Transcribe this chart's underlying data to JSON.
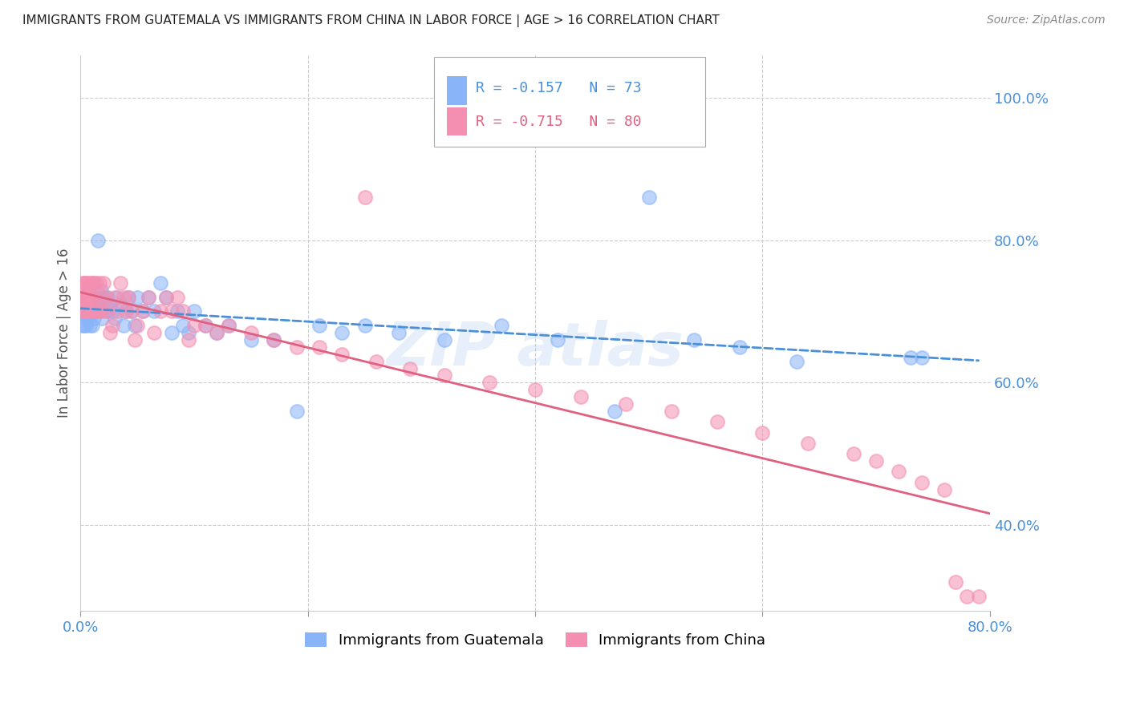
{
  "title": "IMMIGRANTS FROM GUATEMALA VS IMMIGRANTS FROM CHINA IN LABOR FORCE | AGE > 16 CORRELATION CHART",
  "source": "Source: ZipAtlas.com",
  "ylabel": "In Labor Force | Age > 16",
  "xlim": [
    0.0,
    0.8
  ],
  "ylim": [
    0.28,
    1.06
  ],
  "yticks_right": [
    0.4,
    0.6,
    0.8,
    1.0
  ],
  "ytick_labels_right": [
    "40.0%",
    "60.0%",
    "80.0%",
    "100.0%"
  ],
  "xtick_positions": [
    0.0,
    0.2,
    0.4,
    0.6,
    0.8
  ],
  "xticklabels": [
    "0.0%",
    "",
    "",
    "",
    "80.0%"
  ],
  "grid_color": "#cccccc",
  "background_color": "#ffffff",
  "guatemala_color": "#8ab4f8",
  "china_color": "#f48fb1",
  "guatemala_line_color": "#4a90d9",
  "china_line_color": "#e06080",
  "legend_r_guatemala": "R = -0.157",
  "legend_n_guatemala": "N = 73",
  "legend_r_china": "R = -0.715",
  "legend_n_china": "N = 80",
  "guatemala_R": -0.157,
  "guatemala_N": 73,
  "china_R": -0.715,
  "china_N": 80,
  "guatemala_x": [
    0.001,
    0.002,
    0.002,
    0.003,
    0.003,
    0.003,
    0.004,
    0.004,
    0.005,
    0.005,
    0.006,
    0.006,
    0.007,
    0.007,
    0.008,
    0.008,
    0.009,
    0.01,
    0.01,
    0.011,
    0.012,
    0.012,
    0.013,
    0.014,
    0.015,
    0.016,
    0.017,
    0.018,
    0.019,
    0.02,
    0.022,
    0.024,
    0.026,
    0.028,
    0.03,
    0.032,
    0.035,
    0.038,
    0.04,
    0.042,
    0.045,
    0.048,
    0.05,
    0.055,
    0.06,
    0.065,
    0.07,
    0.075,
    0.08,
    0.085,
    0.09,
    0.095,
    0.1,
    0.11,
    0.12,
    0.13,
    0.15,
    0.17,
    0.19,
    0.21,
    0.23,
    0.25,
    0.28,
    0.32,
    0.37,
    0.42,
    0.47,
    0.5,
    0.54,
    0.58,
    0.63,
    0.73,
    0.74
  ],
  "guatemala_y": [
    0.7,
    0.71,
    0.68,
    0.72,
    0.7,
    0.68,
    0.72,
    0.7,
    0.72,
    0.68,
    0.71,
    0.69,
    0.73,
    0.7,
    0.72,
    0.68,
    0.7,
    0.72,
    0.68,
    0.7,
    0.72,
    0.69,
    0.71,
    0.7,
    0.8,
    0.72,
    0.7,
    0.73,
    0.69,
    0.72,
    0.7,
    0.72,
    0.71,
    0.7,
    0.69,
    0.72,
    0.71,
    0.68,
    0.7,
    0.72,
    0.7,
    0.68,
    0.72,
    0.7,
    0.72,
    0.7,
    0.74,
    0.72,
    0.67,
    0.7,
    0.68,
    0.67,
    0.7,
    0.68,
    0.67,
    0.68,
    0.66,
    0.66,
    0.56,
    0.68,
    0.67,
    0.68,
    0.67,
    0.66,
    0.68,
    0.66,
    0.56,
    0.86,
    0.66,
    0.65,
    0.63,
    0.635,
    0.635
  ],
  "china_x": [
    0.001,
    0.002,
    0.002,
    0.003,
    0.003,
    0.003,
    0.004,
    0.004,
    0.005,
    0.005,
    0.006,
    0.006,
    0.007,
    0.007,
    0.008,
    0.008,
    0.009,
    0.01,
    0.01,
    0.011,
    0.012,
    0.012,
    0.013,
    0.014,
    0.25,
    0.016,
    0.017,
    0.018,
    0.019,
    0.02,
    0.022,
    0.024,
    0.026,
    0.028,
    0.03,
    0.032,
    0.035,
    0.038,
    0.04,
    0.042,
    0.045,
    0.048,
    0.05,
    0.055,
    0.06,
    0.065,
    0.07,
    0.075,
    0.08,
    0.085,
    0.09,
    0.095,
    0.1,
    0.11,
    0.12,
    0.13,
    0.15,
    0.17,
    0.19,
    0.21,
    0.23,
    0.26,
    0.29,
    0.32,
    0.36,
    0.4,
    0.44,
    0.48,
    0.52,
    0.56,
    0.6,
    0.64,
    0.68,
    0.7,
    0.72,
    0.74,
    0.76,
    0.77,
    0.78,
    0.79
  ],
  "china_y": [
    0.72,
    0.7,
    0.74,
    0.72,
    0.7,
    0.74,
    0.72,
    0.7,
    0.74,
    0.72,
    0.7,
    0.74,
    0.72,
    0.7,
    0.74,
    0.72,
    0.7,
    0.74,
    0.72,
    0.7,
    0.74,
    0.72,
    0.7,
    0.74,
    0.86,
    0.7,
    0.74,
    0.72,
    0.7,
    0.74,
    0.72,
    0.7,
    0.67,
    0.68,
    0.72,
    0.7,
    0.74,
    0.72,
    0.7,
    0.72,
    0.7,
    0.66,
    0.68,
    0.7,
    0.72,
    0.67,
    0.7,
    0.72,
    0.7,
    0.72,
    0.7,
    0.66,
    0.68,
    0.68,
    0.67,
    0.68,
    0.67,
    0.66,
    0.65,
    0.65,
    0.64,
    0.63,
    0.62,
    0.61,
    0.6,
    0.59,
    0.58,
    0.57,
    0.56,
    0.545,
    0.53,
    0.515,
    0.5,
    0.49,
    0.475,
    0.46,
    0.45,
    0.32,
    0.3,
    0.3
  ]
}
